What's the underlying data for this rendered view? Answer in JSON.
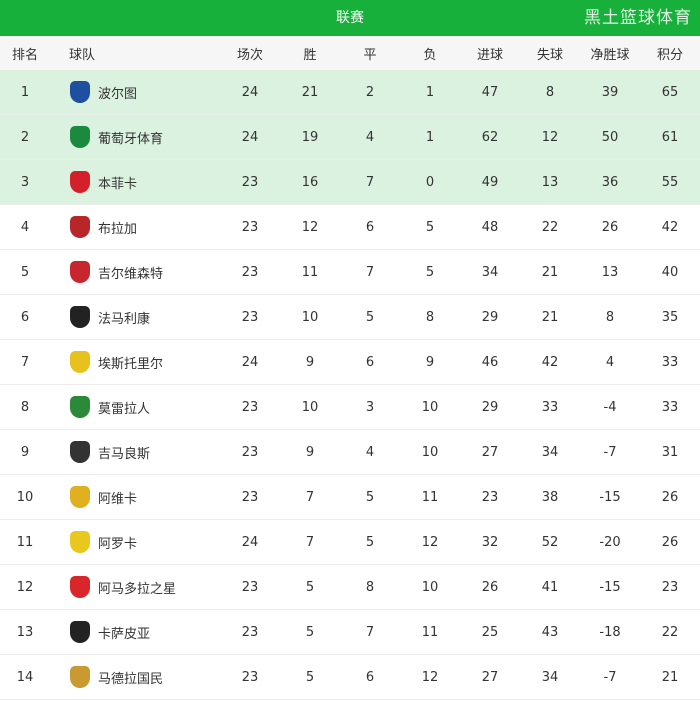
{
  "title": "联赛",
  "headers": [
    "排名",
    "球队",
    "场次",
    "胜",
    "平",
    "负",
    "进球",
    "失球",
    "净胜球",
    "积分"
  ],
  "highlight_color": "#dcf2e0",
  "accent": "#17b03b",
  "rows": [
    {
      "rank": "1",
      "team": "波尔图",
      "logo": "#1e4fa0",
      "stats": [
        "24",
        "21",
        "2",
        "1",
        "47",
        "8",
        "39",
        "65"
      ]
    },
    {
      "rank": "2",
      "team": "葡萄牙体育",
      "logo": "#1a8a3e",
      "stats": [
        "24",
        "19",
        "4",
        "1",
        "62",
        "12",
        "50",
        "61"
      ]
    },
    {
      "rank": "3",
      "team": "本菲卡",
      "logo": "#d4202a",
      "stats": [
        "23",
        "16",
        "7",
        "0",
        "49",
        "13",
        "36",
        "55"
      ]
    },
    {
      "rank": "4",
      "team": "布拉加",
      "logo": "#b8262a",
      "stats": [
        "23",
        "12",
        "6",
        "5",
        "48",
        "22",
        "26",
        "42"
      ]
    },
    {
      "rank": "5",
      "team": "吉尔维森特",
      "logo": "#c8262e",
      "stats": [
        "23",
        "11",
        "7",
        "5",
        "34",
        "21",
        "13",
        "40"
      ]
    },
    {
      "rank": "6",
      "team": "法马利康",
      "logo": "#222222",
      "stats": [
        "23",
        "10",
        "5",
        "8",
        "29",
        "21",
        "8",
        "35"
      ]
    },
    {
      "rank": "7",
      "team": "埃斯托里尔",
      "logo": "#e8c21c",
      "stats": [
        "24",
        "9",
        "6",
        "9",
        "46",
        "42",
        "4",
        "33"
      ]
    },
    {
      "rank": "8",
      "team": "莫雷拉人",
      "logo": "#2a8a3a",
      "stats": [
        "23",
        "10",
        "3",
        "10",
        "29",
        "33",
        "-4",
        "33"
      ]
    },
    {
      "rank": "9",
      "team": "吉马良斯",
      "logo": "#333333",
      "stats": [
        "23",
        "9",
        "4",
        "10",
        "27",
        "34",
        "-7",
        "31"
      ]
    },
    {
      "rank": "10",
      "team": "阿维卡",
      "logo": "#e0b020",
      "stats": [
        "23",
        "7",
        "5",
        "11",
        "23",
        "38",
        "-15",
        "26"
      ]
    },
    {
      "rank": "11",
      "team": "阿罗卡",
      "logo": "#e8c81c",
      "stats": [
        "24",
        "7",
        "5",
        "12",
        "32",
        "52",
        "-20",
        "26"
      ]
    },
    {
      "rank": "12",
      "team": "阿马多拉之星",
      "logo": "#d8262a",
      "stats": [
        "23",
        "5",
        "8",
        "10",
        "26",
        "41",
        "-15",
        "23"
      ]
    },
    {
      "rank": "13",
      "team": "卡萨皮亚",
      "logo": "#222222",
      "stats": [
        "23",
        "5",
        "7",
        "11",
        "25",
        "43",
        "-18",
        "22"
      ]
    },
    {
      "rank": "14",
      "team": "马德拉国民",
      "logo": "#c89a30",
      "stats": [
        "23",
        "5",
        "6",
        "12",
        "27",
        "34",
        "-7",
        "21"
      ]
    }
  ],
  "watermark": "黑土篮球体育"
}
